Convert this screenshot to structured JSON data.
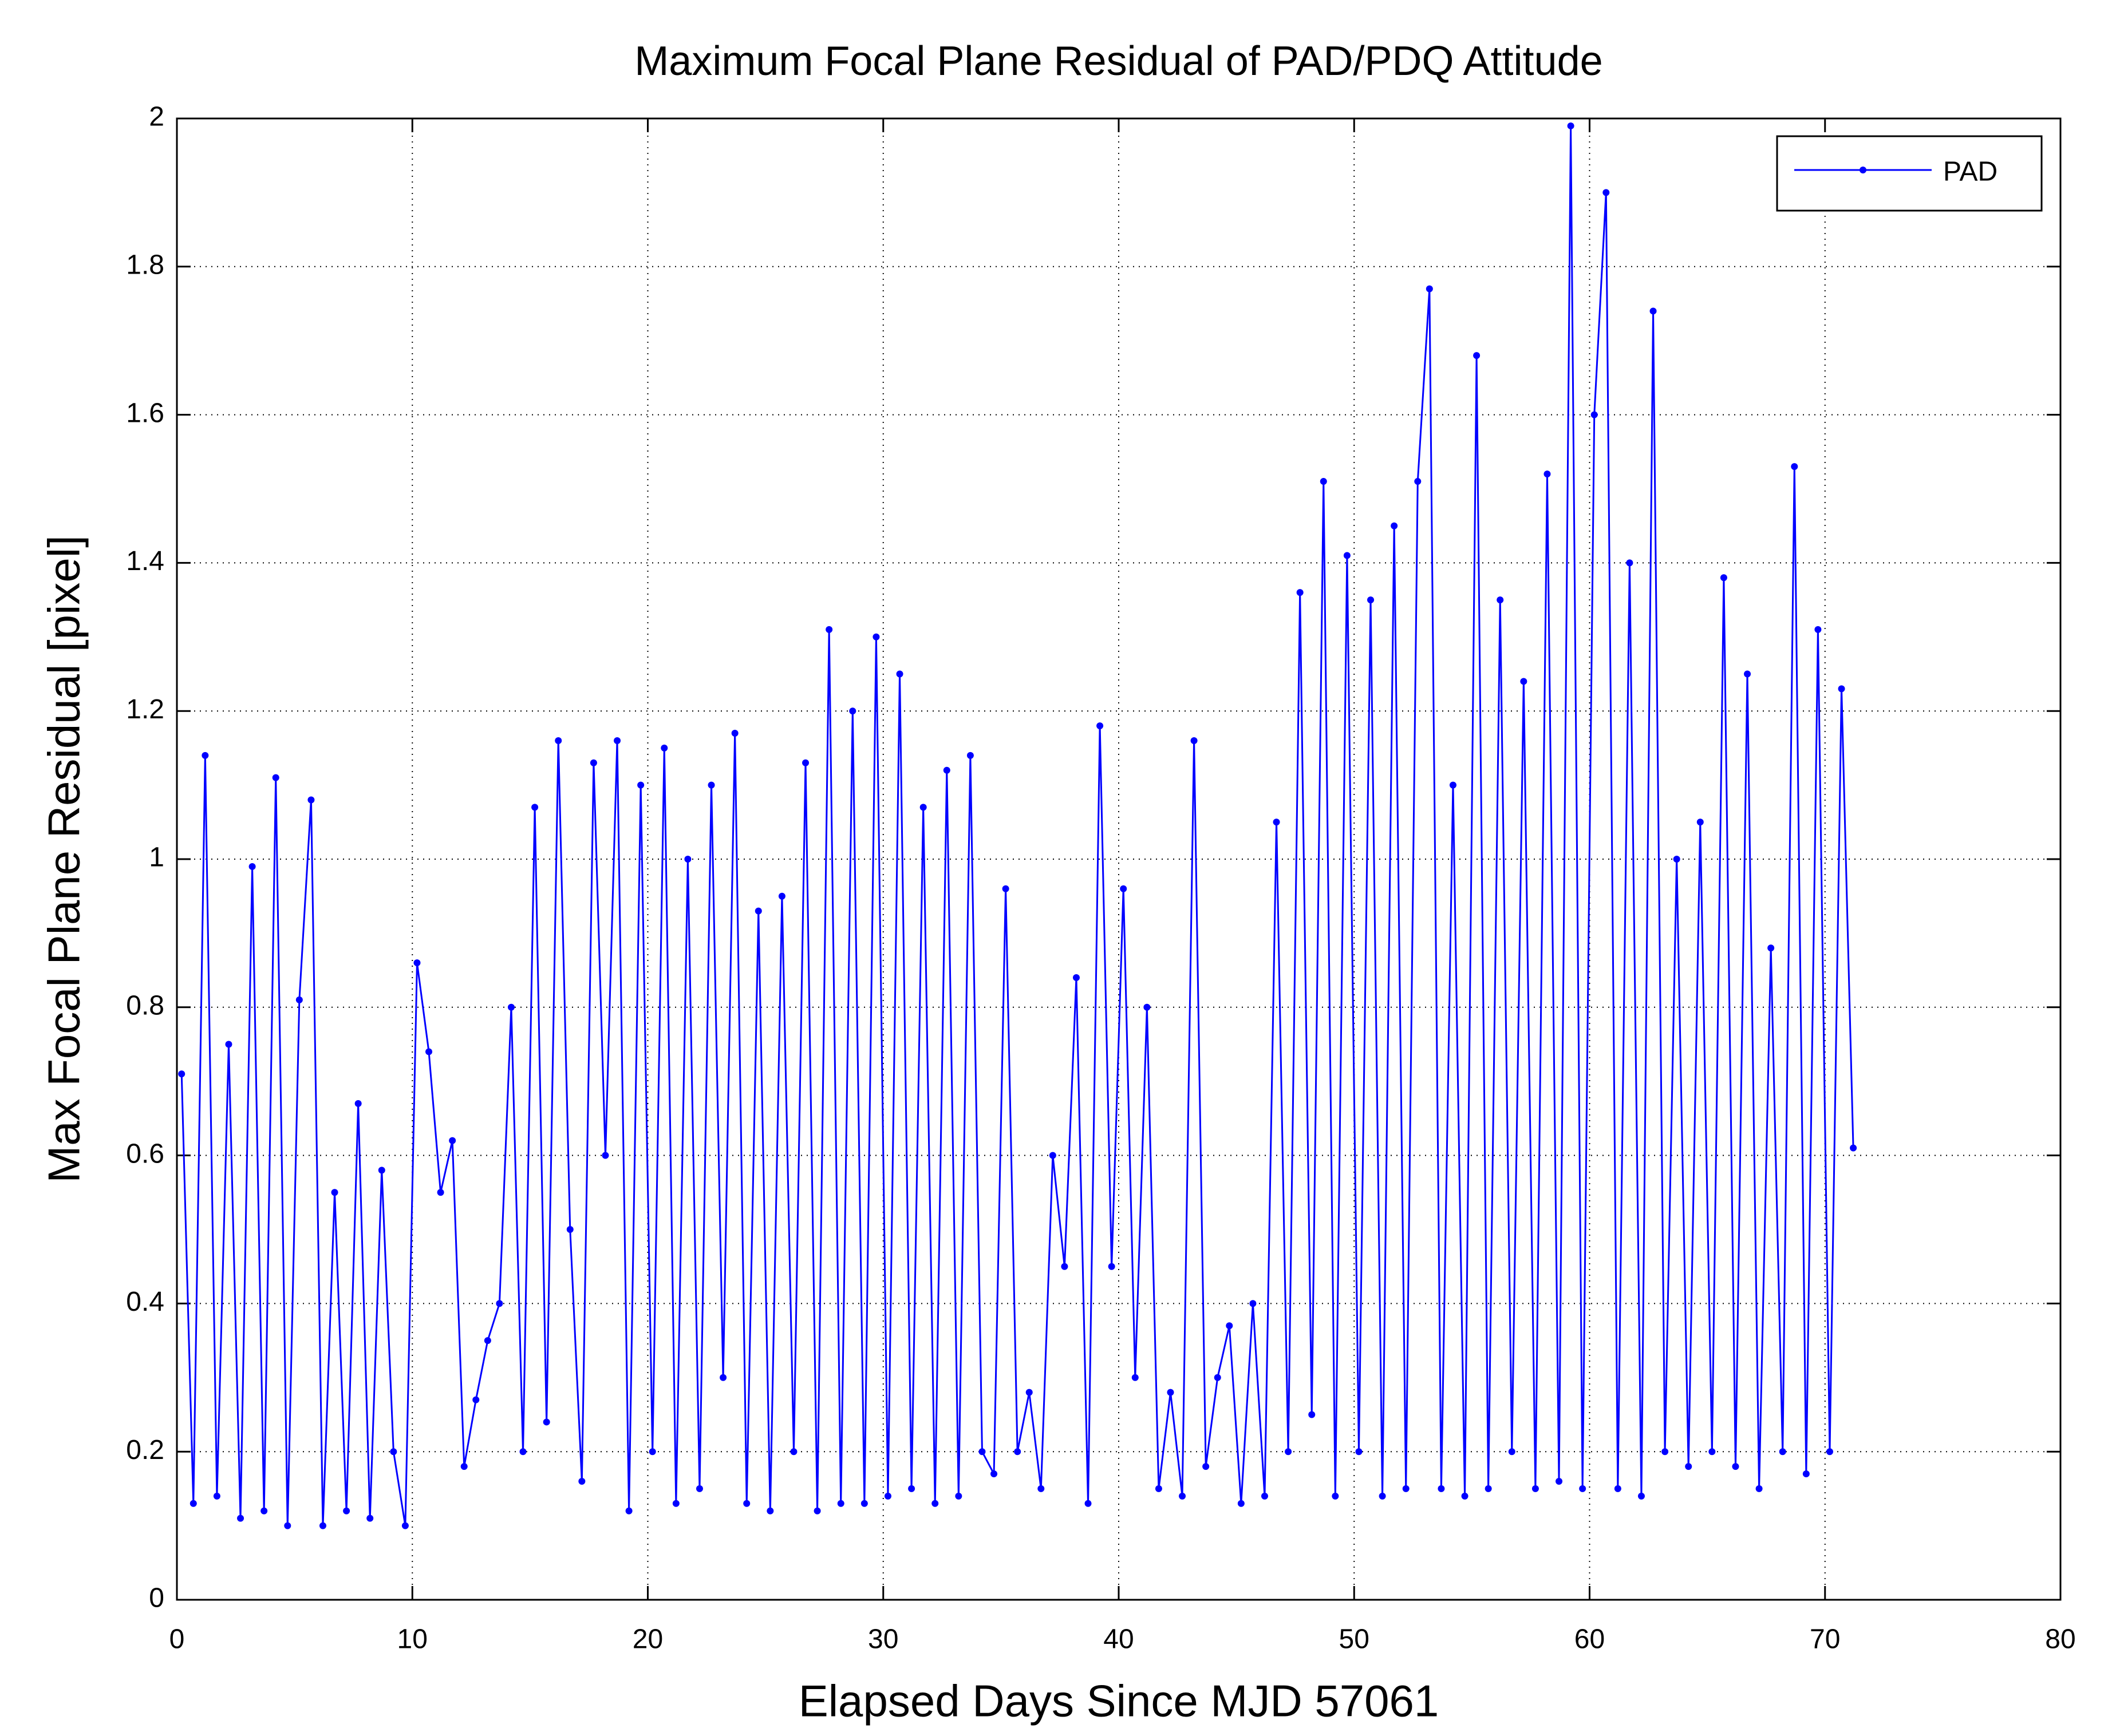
{
  "chart_data": {
    "type": "line",
    "title": "Maximum Focal Plane Residual of PAD/PDQ Attitude",
    "x_label": "Elapsed Days Since MJD 57061",
    "y_label": "Max Focal Plane Residual [pixel]",
    "x": [
      0.2,
      0.7,
      1.2,
      1.7,
      2.2,
      2.7,
      3.2,
      3.7,
      4.2,
      4.7,
      5.2,
      5.7,
      6.2,
      6.7,
      7.2,
      7.7,
      8.2,
      8.7,
      9.2,
      9.7,
      10.2,
      10.7,
      11.2,
      11.7,
      12.2,
      12.7,
      13.2,
      13.7,
      14.2,
      14.7,
      15.2,
      15.7,
      16.2,
      16.7,
      17.2,
      17.7,
      18.2,
      18.7,
      19.2,
      19.7,
      20.2,
      20.7,
      21.2,
      21.7,
      22.2,
      22.7,
      23.2,
      23.7,
      24.2,
      24.7,
      25.2,
      25.7,
      26.2,
      26.7,
      27.2,
      27.7,
      28.2,
      28.7,
      29.2,
      29.7,
      30.2,
      30.7,
      31.2,
      31.7,
      32.2,
      32.7,
      33.2,
      33.7,
      34.2,
      34.7,
      35.2,
      35.7,
      36.2,
      36.7,
      37.2,
      37.7,
      38.2,
      38.7,
      39.2,
      39.7,
      40.2,
      40.7,
      41.2,
      41.7,
      42.2,
      42.7,
      43.2,
      43.7,
      44.2,
      44.7,
      45.2,
      45.7,
      46.2,
      46.7,
      47.2,
      47.7,
      48.2,
      48.7,
      49.2,
      49.7,
      50.2,
      50.7,
      51.2,
      51.7,
      52.2,
      52.7,
      53.2,
      53.7,
      54.2,
      54.7,
      55.2,
      55.7,
      56.2,
      56.7,
      57.2,
      57.7,
      58.2,
      58.7,
      59.2,
      59.7,
      60.2,
      60.7,
      61.2,
      61.7,
      62.2,
      62.7,
      63.2,
      63.7,
      64.2,
      64.7,
      65.2,
      65.7,
      66.2,
      66.7,
      67.2,
      67.7,
      68.2,
      68.7,
      69.2,
      69.7,
      70.2,
      70.7,
      71.2
    ],
    "series": [
      {
        "name": "PAD",
        "color": "#0000ff",
        "values": [
          0.71,
          0.13,
          1.14,
          0.14,
          0.75,
          0.11,
          0.99,
          0.12,
          1.11,
          0.1,
          0.81,
          1.08,
          0.1,
          0.55,
          0.12,
          0.67,
          0.11,
          0.58,
          0.2,
          0.1,
          0.86,
          0.74,
          0.55,
          0.62,
          0.18,
          0.27,
          0.35,
          0.4,
          0.8,
          0.2,
          1.07,
          0.24,
          1.16,
          0.5,
          0.16,
          1.13,
          0.6,
          1.16,
          0.12,
          1.1,
          0.2,
          1.15,
          0.13,
          1.0,
          0.15,
          1.1,
          0.3,
          1.17,
          0.13,
          0.93,
          0.12,
          0.95,
          0.2,
          1.13,
          0.12,
          1.31,
          0.13,
          1.2,
          0.13,
          1.3,
          0.14,
          1.25,
          0.15,
          1.07,
          0.13,
          1.12,
          0.14,
          1.14,
          0.2,
          0.17,
          0.96,
          0.2,
          0.28,
          0.15,
          0.6,
          0.45,
          0.84,
          0.13,
          1.18,
          0.45,
          0.96,
          0.3,
          0.8,
          0.15,
          0.28,
          0.14,
          1.16,
          0.18,
          0.3,
          0.37,
          0.13,
          0.4,
          0.14,
          1.05,
          0.2,
          1.36,
          0.25,
          1.51,
          0.14,
          1.41,
          0.2,
          1.35,
          0.14,
          1.45,
          0.15,
          1.51,
          1.77,
          0.15,
          1.1,
          0.14,
          1.68,
          0.15,
          1.35,
          0.2,
          1.24,
          0.15,
          1.52,
          0.16,
          1.99,
          0.15,
          1.6,
          1.9,
          0.15,
          1.4,
          0.14,
          1.74,
          0.2,
          1.0,
          0.18,
          1.05,
          0.2,
          1.38,
          0.18,
          1.25,
          0.15,
          0.88,
          0.2,
          1.53,
          0.17,
          1.31,
          0.2,
          1.23,
          0.61
        ]
      }
    ],
    "xlim": [
      0,
      80
    ],
    "xticks": [
      0,
      10,
      20,
      30,
      40,
      50,
      60,
      70,
      80
    ],
    "ylim": [
      0,
      2
    ],
    "yticks": [
      0,
      0.2,
      0.4,
      0.6,
      0.8,
      1,
      1.2,
      1.4,
      1.6,
      1.8,
      2
    ],
    "grid": true,
    "legend": "upper right"
  }
}
